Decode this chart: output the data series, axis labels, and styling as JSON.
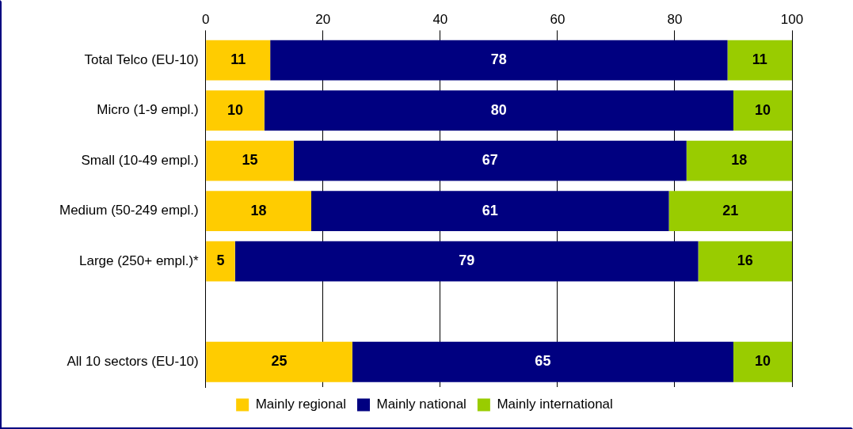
{
  "chart_data": {
    "type": "bar",
    "orientation": "horizontal",
    "stacked": true,
    "categories": [
      "Total Telco (EU-10)",
      "Micro (1-9 empl.)",
      "Small (10-49 empl.)",
      "Medium (50-249 empl.)",
      "Large (250+ empl.)*",
      null,
      "All 10 sectors (EU-10)"
    ],
    "series": [
      {
        "name": "Mainly regional",
        "color": "#ffcc00",
        "values": [
          11,
          10,
          15,
          18,
          5,
          null,
          25
        ]
      },
      {
        "name": "Mainly national",
        "color": "#000080",
        "values": [
          78,
          80,
          67,
          61,
          79,
          null,
          65
        ]
      },
      {
        "name": "Mainly international",
        "color": "#99cc00",
        "values": [
          11,
          10,
          18,
          21,
          16,
          null,
          10
        ]
      }
    ],
    "xlim": [
      0,
      100
    ],
    "xticks": [
      0,
      20,
      40,
      60,
      80,
      100
    ],
    "grid": "x",
    "legend": "bottom",
    "data_labels": true
  }
}
